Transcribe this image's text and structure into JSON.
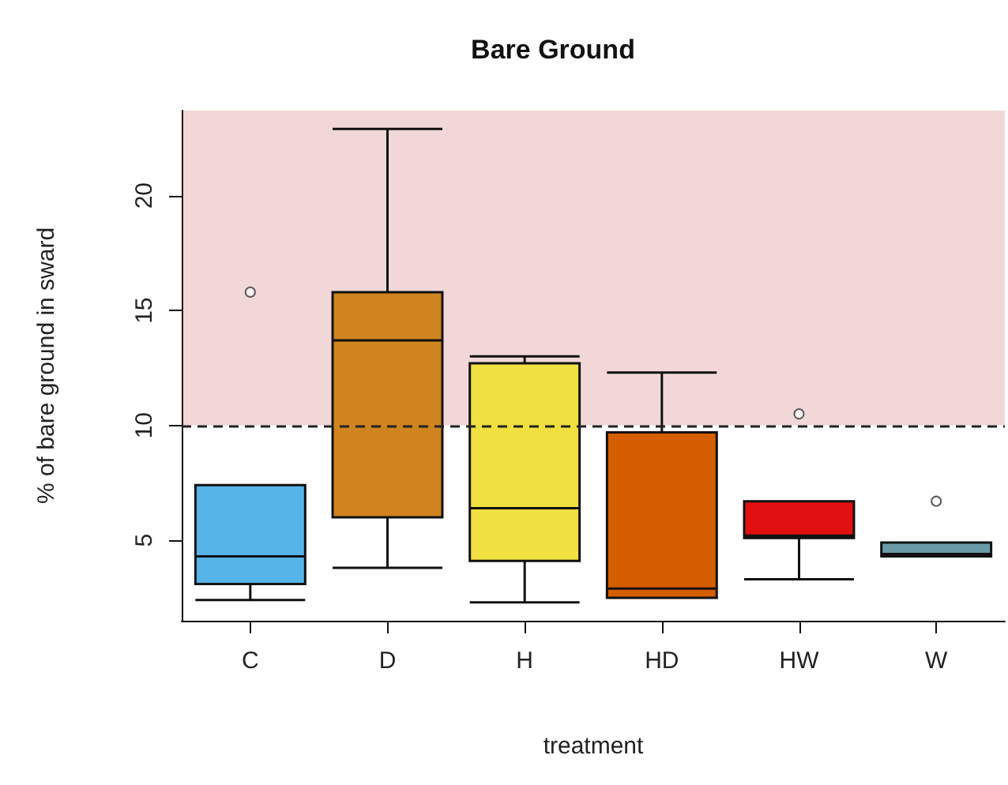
{
  "chart_data": {
    "type": "box",
    "title": "Bare Ground",
    "xlabel": "treatment",
    "ylabel": "% of bare ground in sward",
    "categories": [
      "C",
      "D",
      "H",
      "HD",
      "HW",
      "W"
    ],
    "colors": [
      "#56b4e9",
      "#cf8420",
      "#f0e040",
      "#d55e00",
      "#e01010",
      "#6a9aa8"
    ],
    "boxes": [
      {
        "low": 2.4,
        "q1": 3.1,
        "median": 4.3,
        "q3": 7.4,
        "high": 7.4,
        "outliers": [
          15.8
        ]
      },
      {
        "low": 3.8,
        "q1": 6.0,
        "median": 13.7,
        "q3": 15.8,
        "high": 22.9
      },
      {
        "low": 2.3,
        "q1": 4.1,
        "median": 6.4,
        "q3": 12.7,
        "high": 13.0
      },
      {
        "low": 2.5,
        "q1": 2.5,
        "median": 2.9,
        "q3": 9.7,
        "high": 12.3
      },
      {
        "low": 3.3,
        "q1": 5.1,
        "median": 5.2,
        "q3": 6.7,
        "high": 6.7,
        "outliers": [
          10.5
        ]
      },
      {
        "low": 4.3,
        "q1": 4.3,
        "median": 4.4,
        "q3": 4.9,
        "high": 4.9,
        "outliers": [
          6.7
        ]
      }
    ],
    "ylim": [
      1.5,
      23.7
    ],
    "yticks": [
      5,
      10,
      15,
      20
    ],
    "ref_lines": [
      {
        "axis": "y",
        "value": 10,
        "line_style": "dashed",
        "color": "#222222"
      }
    ],
    "bands": [
      {
        "axis": "y",
        "from": 10,
        "to": 23.7,
        "color": "#b22222"
      }
    ],
    "grid": false
  }
}
